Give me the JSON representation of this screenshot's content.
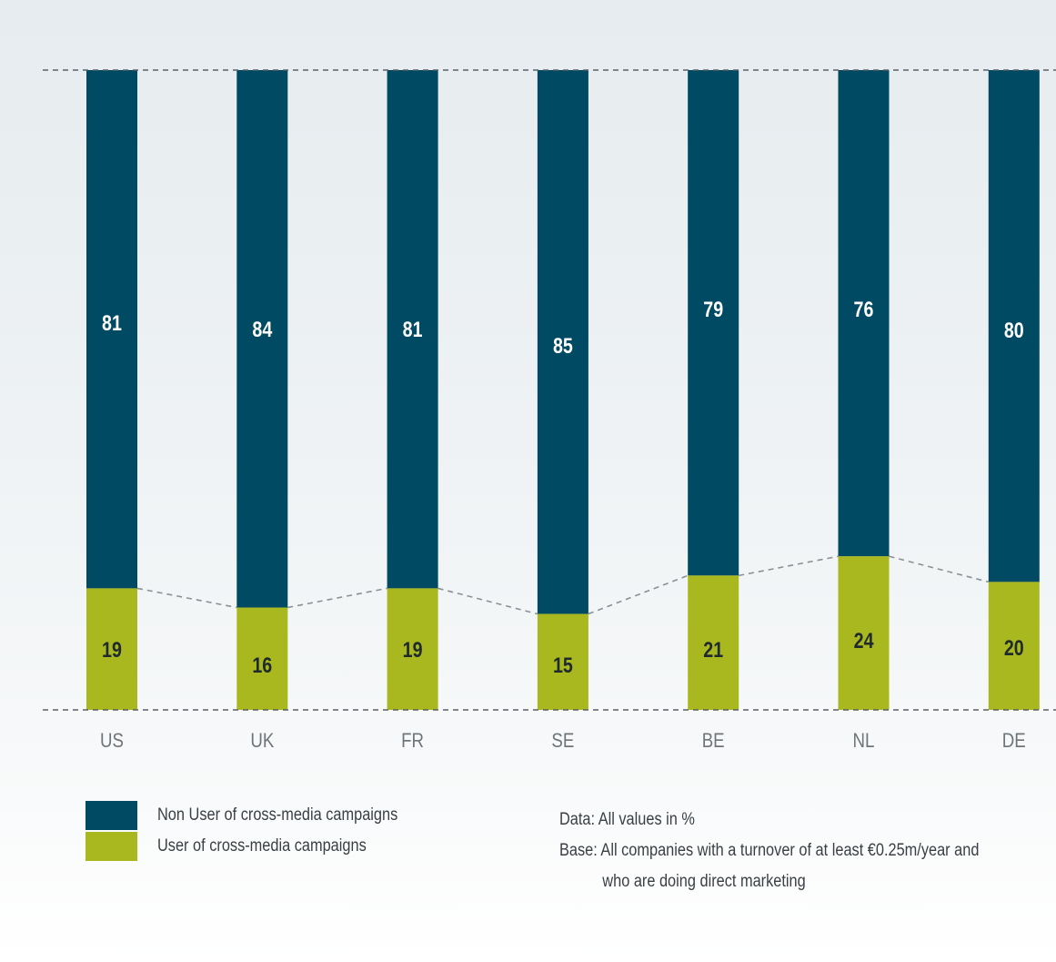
{
  "chart_data": {
    "type": "bar",
    "stacked": true,
    "categories": [
      "US",
      "UK",
      "FR",
      "SE",
      "BE",
      "NL",
      "DE"
    ],
    "series": [
      {
        "name": "User of cross-media campaigns",
        "values": [
          19,
          16,
          19,
          15,
          21,
          24,
          20
        ],
        "color": "#a9b81e",
        "label_color": "#1f2a2e"
      },
      {
        "name": "Non User of cross-media campaigns",
        "values": [
          81,
          84,
          81,
          85,
          79,
          76,
          80
        ],
        "color": "#004a63",
        "label_color": "#ffffff"
      }
    ],
    "ylim": [
      0,
      100
    ],
    "xlabel": "",
    "ylabel": "",
    "legend_placement": "bottom-left",
    "grid": false,
    "reference_lines": "dashed lines at 0 and 100 and connecting the tops of the user segments"
  },
  "legend": {
    "items": [
      {
        "label": "Non User of cross-media campaigns",
        "color": "#004a63"
      },
      {
        "label": "User of cross-media campaigns",
        "color": "#a9b81e"
      }
    ]
  },
  "notes": {
    "data_line": "Data: All values in %",
    "base_line_1": "Base: All companies with a turnover of at least €0.25m/year and",
    "base_line_2": "who are doing direct marketing"
  }
}
